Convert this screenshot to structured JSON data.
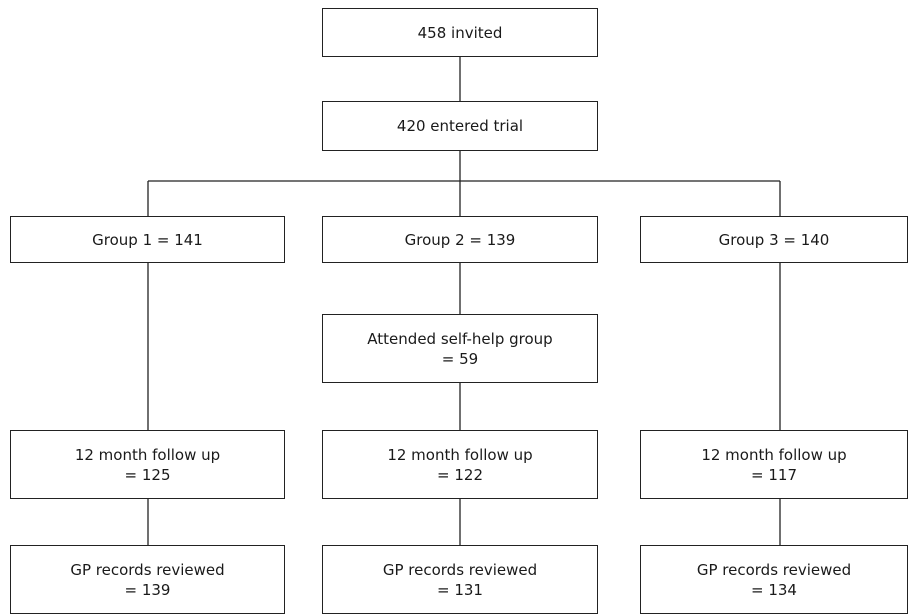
{
  "nodes": {
    "invited": "458 invited",
    "entered": "420 entered trial",
    "group1": "Group 1 = 141",
    "group2": "Group 2 = 139",
    "group3": "Group 3 = 140",
    "selfhelp": "Attended self-help group\n= 59",
    "followup1": "12 month follow up\n= 125",
    "followup2": "12 month follow up\n= 122",
    "followup3": "12 month follow up\n= 117",
    "gp1": "GP records reviewed\n= 139",
    "gp2": "GP records reviewed\n= 131",
    "gp3": "GP records reviewed\n= 134"
  }
}
